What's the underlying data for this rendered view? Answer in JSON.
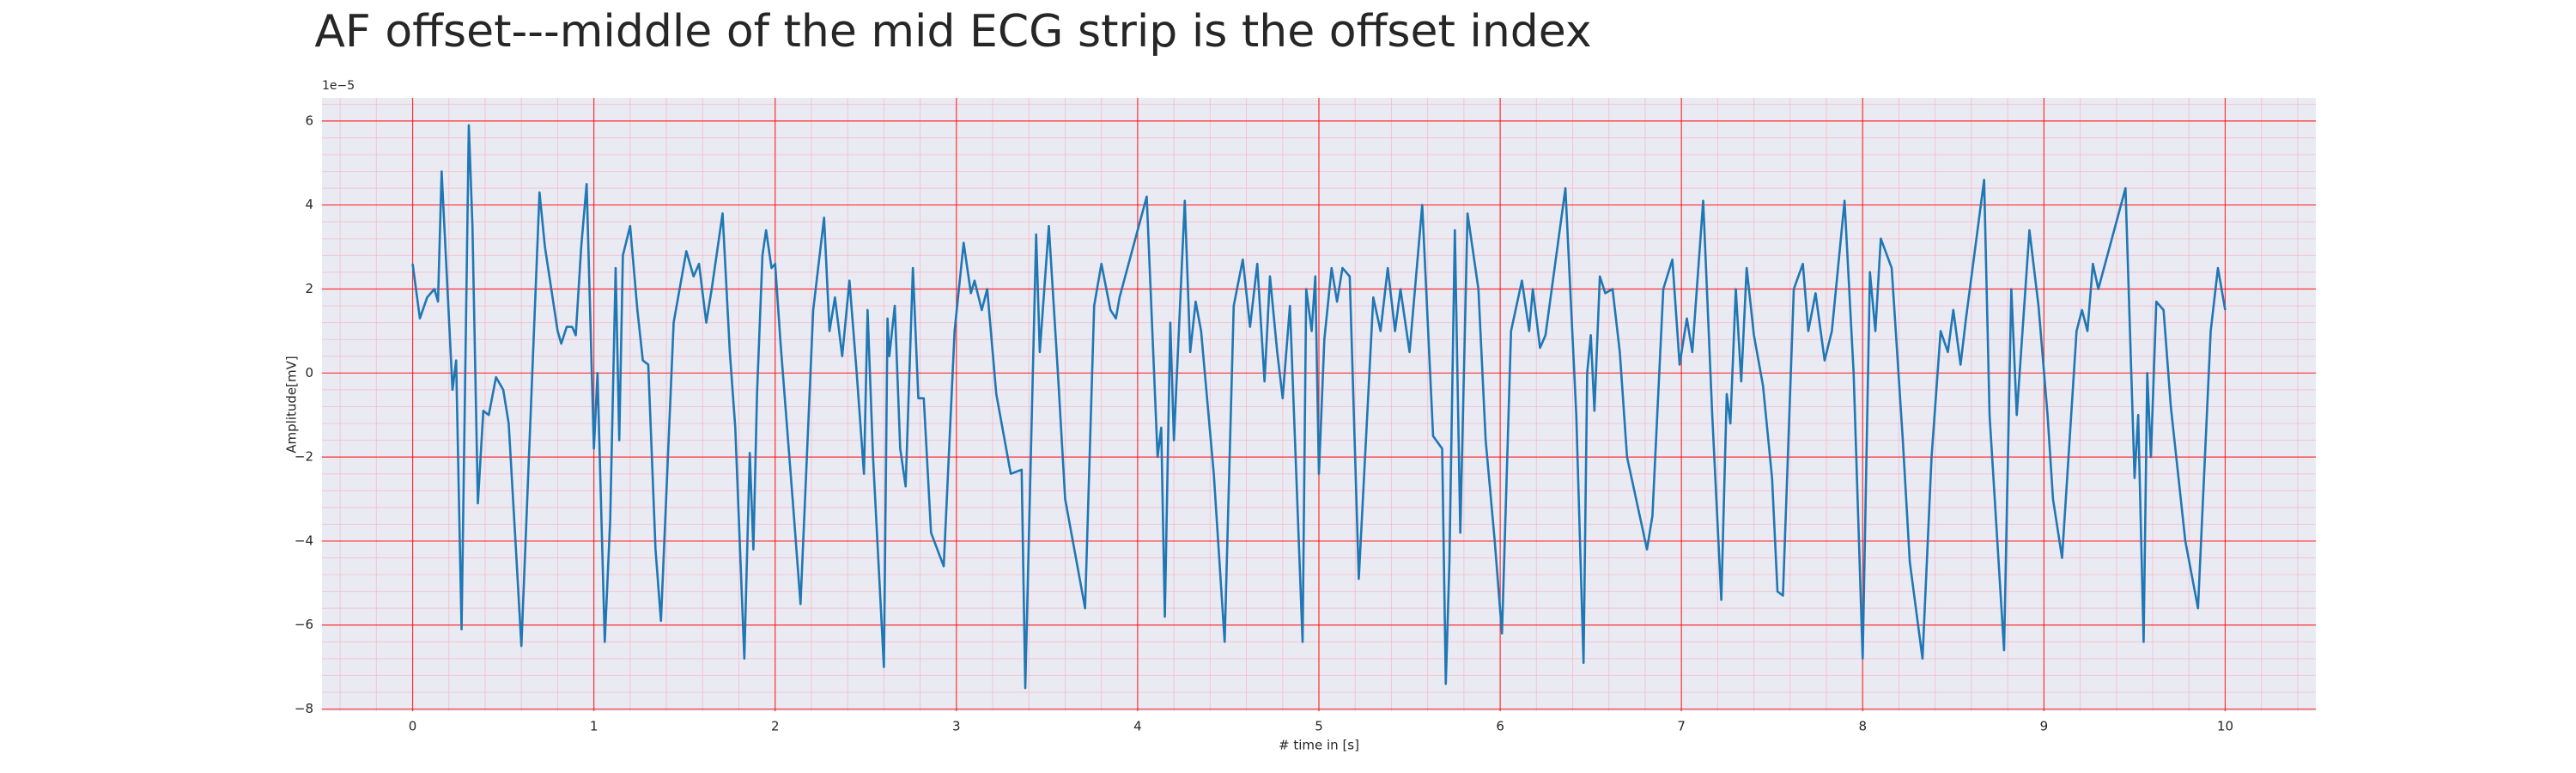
{
  "chart_data": {
    "type": "line",
    "title": "AF offset---middle of the mid ECG strip is the offset index",
    "xlabel": "# time in [s]",
    "ylabel": "Amplitude[mV]",
    "offset_label": "1e−5",
    "color": "#1f77b4",
    "grid": true,
    "grid_color": "#ff0000",
    "minor_grid": true,
    "xlim": [
      -0.5,
      10.5
    ],
    "ylim": [
      -8.05,
      6.55
    ],
    "xticks": [
      0,
      1,
      2,
      3,
      4,
      5,
      6,
      7,
      8,
      9,
      10
    ],
    "yticks": [
      {
        "value": -8,
        "label": "−8"
      },
      {
        "value": -6,
        "label": "−6"
      },
      {
        "value": -4,
        "label": "−4"
      },
      {
        "value": -2,
        "label": "−2"
      },
      0,
      2,
      4,
      6
    ],
    "x": [
      0,
      0.04,
      0.08,
      0.12,
      0.14,
      0.16,
      0.22,
      0.24,
      0.27,
      0.31,
      0.33,
      0.36,
      0.39,
      0.42,
      0.46,
      0.5,
      0.53,
      0.57,
      0.6,
      0.7,
      0.73,
      0.8,
      0.82,
      0.85,
      0.88,
      0.9,
      0.93,
      0.96,
      1.0,
      1.02,
      1.06,
      1.09,
      1.12,
      1.14,
      1.16,
      1.2,
      1.24,
      1.27,
      1.3,
      1.34,
      1.37,
      1.44,
      1.51,
      1.55,
      1.58,
      1.62,
      1.65,
      1.71,
      1.75,
      1.78,
      1.83,
      1.86,
      1.88,
      1.9,
      1.93,
      1.95,
      1.98,
      2.0,
      2.03,
      2.1,
      2.14,
      2.21,
      2.27,
      2.3,
      2.33,
      2.37,
      2.41,
      2.45,
      2.49,
      2.51,
      2.54,
      2.6,
      2.62,
      2.63,
      2.66,
      2.69,
      2.72,
      2.76,
      2.79,
      2.82,
      2.86,
      2.93,
      2.99,
      3.04,
      3.08,
      3.1,
      3.14,
      3.17,
      3.22,
      3.3,
      3.36,
      3.38,
      3.44,
      3.46,
      3.51,
      3.56,
      3.6,
      3.71,
      3.76,
      3.8,
      3.85,
      3.88,
      3.9,
      4.05,
      4.11,
      4.13,
      4.15,
      4.18,
      4.2,
      4.26,
      4.29,
      4.32,
      4.35,
      4.42,
      4.48,
      4.53,
      4.58,
      4.62,
      4.66,
      4.7,
      4.73,
      4.77,
      4.8,
      4.84,
      4.91,
      4.93,
      4.96,
      4.98,
      5.0,
      5.03,
      5.07,
      5.1,
      5.13,
      5.17,
      5.22,
      5.3,
      5.34,
      5.38,
      5.42,
      5.45,
      5.5,
      5.57,
      5.63,
      5.68,
      5.7,
      5.72,
      5.75,
      5.78,
      5.82,
      5.88,
      5.92,
      5.97,
      6.01,
      6.06,
      6.12,
      6.16,
      6.18,
      6.22,
      6.25,
      6.36,
      6.42,
      6.46,
      6.48,
      6.5,
      6.52,
      6.55,
      6.58,
      6.62,
      6.66,
      6.7,
      6.75,
      6.81,
      6.84,
      6.9,
      6.95,
      6.99,
      7.03,
      7.06,
      7.12,
      7.17,
      7.22,
      7.25,
      7.27,
      7.3,
      7.33,
      7.36,
      7.4,
      7.45,
      7.5,
      7.53,
      7.56,
      7.62,
      7.67,
      7.7,
      7.74,
      7.79,
      7.83,
      7.9,
      7.95,
      8.0,
      8.04,
      8.07,
      8.1,
      8.16,
      8.22,
      8.26,
      8.33,
      8.38,
      8.43,
      8.47,
      8.5,
      8.54,
      8.57,
      8.67,
      8.7,
      8.78,
      8.82,
      8.85,
      8.92,
      8.97,
      9.02,
      9.05,
      9.1,
      9.18,
      9.21,
      9.24,
      9.27,
      9.3,
      9.45,
      9.5,
      9.52,
      9.55,
      9.57,
      9.59,
      9.62,
      9.66,
      9.7,
      9.78,
      9.85,
      9.92,
      9.96,
      10.0
    ],
    "values": [
      2.6,
      1.3,
      1.8,
      2.0,
      1.7,
      4.8,
      -0.4,
      0.3,
      -6.1,
      5.9,
      3.5,
      -3.1,
      -0.9,
      -1.0,
      -0.1,
      -0.4,
      -1.2,
      -4.2,
      -6.5,
      4.3,
      3.0,
      1.0,
      0.7,
      1.1,
      1.1,
      0.9,
      3.0,
      4.5,
      -1.8,
      0.0,
      -6.4,
      -3.5,
      2.5,
      -1.6,
      2.8,
      3.5,
      1.5,
      0.3,
      0.2,
      -4.2,
      -5.9,
      1.2,
      2.9,
      2.3,
      2.6,
      1.2,
      2.0,
      3.8,
      0.5,
      -1.3,
      -6.8,
      -1.9,
      -4.2,
      -0.5,
      2.8,
      3.4,
      2.5,
      2.6,
      0.7,
      -3.2,
      -5.5,
      1.5,
      3.7,
      1.0,
      1.8,
      0.4,
      2.2,
      0.0,
      -2.4,
      1.5,
      -2.0,
      -7.0,
      1.3,
      0.4,
      1.6,
      -1.8,
      -2.7,
      2.5,
      -0.6,
      -0.6,
      -3.8,
      -4.6,
      1.0,
      3.1,
      1.9,
      2.2,
      1.5,
      2.0,
      -0.5,
      -2.4,
      -2.3,
      -7.5,
      3.3,
      0.5,
      3.5,
      0.0,
      -3.0,
      -5.6,
      1.6,
      2.6,
      1.5,
      1.3,
      1.8,
      4.2,
      -2.0,
      -1.3,
      -5.8,
      1.2,
      -1.6,
      4.1,
      0.5,
      1.7,
      1.0,
      -2.4,
      -6.4,
      1.6,
      2.7,
      1.1,
      2.6,
      -0.2,
      2.3,
      0.5,
      -0.6,
      1.6,
      -6.4,
      2.0,
      1.0,
      2.3,
      -2.4,
      0.8,
      2.5,
      1.7,
      2.5,
      2.3,
      -4.9,
      1.8,
      1.0,
      2.5,
      1.0,
      2.0,
      0.5,
      4.0,
      -1.5,
      -1.8,
      -7.4,
      -4.5,
      3.4,
      -3.8,
      3.8,
      2.0,
      -1.6,
      -4.0,
      -6.2,
      1.0,
      2.2,
      1.0,
      2.0,
      0.6,
      0.9,
      4.4,
      -1.0,
      -6.9,
      0.0,
      0.9,
      -0.9,
      2.3,
      1.9,
      2.0,
      0.5,
      -2.0,
      -3.0,
      -4.2,
      -3.4,
      2.0,
      2.7,
      0.2,
      1.3,
      0.5,
      4.1,
      -1.0,
      -5.4,
      -0.5,
      -1.2,
      2.0,
      -0.2,
      2.5,
      0.9,
      -0.3,
      -2.5,
      -5.2,
      -5.3,
      2.0,
      2.6,
      1.0,
      1.9,
      0.3,
      1.0,
      4.1,
      0.0,
      -6.8,
      2.4,
      1.0,
      3.2,
      2.5,
      -1.5,
      -4.5,
      -6.8,
      -2.0,
      1.0,
      0.5,
      1.5,
      0.2,
      1.3,
      4.6,
      -1.0,
      -6.6,
      2.0,
      -1.0,
      3.4,
      1.6,
      -1.0,
      -3.0,
      -4.4,
      1.0,
      1.5,
      1.0,
      2.6,
      2.0,
      4.4,
      -2.5,
      -1.0,
      -6.4,
      0.0,
      -2.0,
      1.7,
      1.5,
      -0.8,
      -4.0,
      -5.6,
      1.0,
      2.5,
      1.5
    ]
  }
}
